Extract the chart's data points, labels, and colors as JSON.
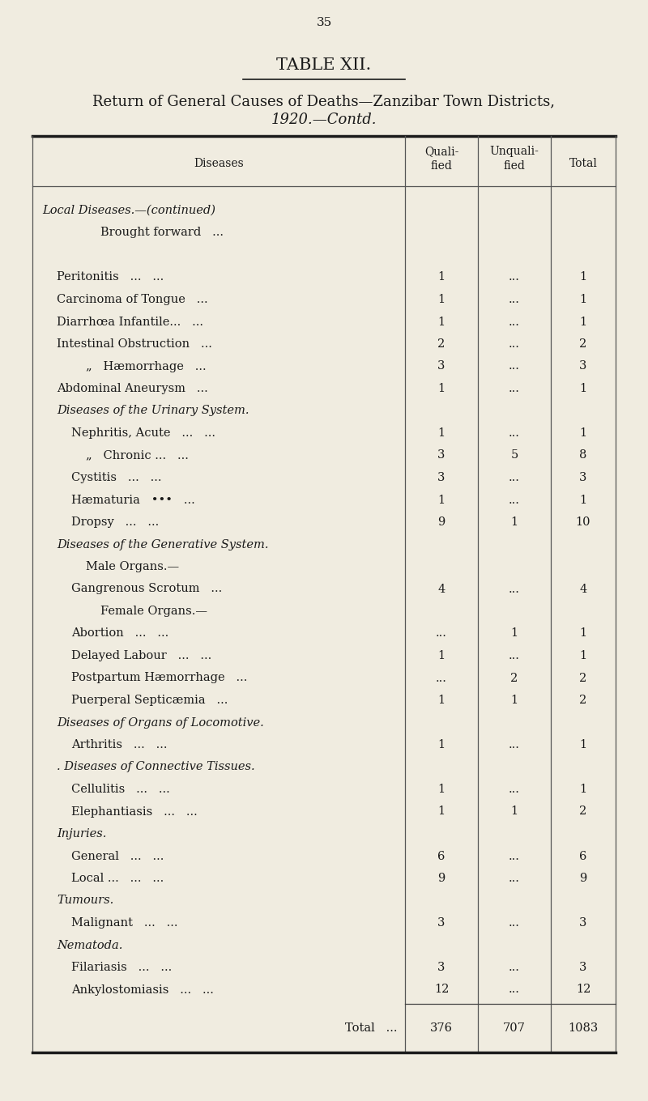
{
  "page_number": "35",
  "title": "TABLE XII.",
  "subtitle_line1": "Return of General Causes of Deaths—Zanzibar Town Districts,",
  "subtitle_line2": "1920.—Contd.",
  "bg_color": "#f0ece0",
  "text_color": "#1a1a1a",
  "rows": [
    {
      "label": "Local Diseases.—(continued)",
      "indent": 0,
      "style": "smallcaps_italic",
      "qual": "",
      "unqual": "",
      "total": ""
    },
    {
      "label": "Brought forward   ...",
      "indent": 4,
      "style": "normal",
      "qual": "",
      "unqual": "",
      "total": ""
    },
    {
      "label": "",
      "indent": 0,
      "style": "normal",
      "qual": "",
      "unqual": "",
      "total": ""
    },
    {
      "label": "Peritonitis   ...   ...",
      "indent": 1,
      "style": "normal",
      "qual": "1",
      "unqual": "...",
      "total": "1"
    },
    {
      "label": "Carcinoma of Tongue   ...",
      "indent": 1,
      "style": "normal",
      "qual": "1",
      "unqual": "...",
      "total": "1"
    },
    {
      "label": "Diarrhœa Infantile...   ...",
      "indent": 1,
      "style": "normal",
      "qual": "1",
      "unqual": "...",
      "total": "1"
    },
    {
      "label": "Intestinal Obstruction   ...",
      "indent": 1,
      "style": "normal",
      "qual": "2",
      "unqual": "...",
      "total": "2"
    },
    {
      "label": "„   Hæmorrhage   ...",
      "indent": 3,
      "style": "normal",
      "qual": "3",
      "unqual": "...",
      "total": "3"
    },
    {
      "label": "Abdominal Aneurysm   ...",
      "indent": 1,
      "style": "normal",
      "qual": "1",
      "unqual": "...",
      "total": "1"
    },
    {
      "label": "Diseases of the Urinary System.",
      "indent": 1,
      "style": "italic",
      "qual": "",
      "unqual": "",
      "total": ""
    },
    {
      "label": "Nephritis, Acute   ...   ...",
      "indent": 2,
      "style": "normal",
      "qual": "1",
      "unqual": "...",
      "total": "1"
    },
    {
      "label": "„   Chronic ...   ...",
      "indent": 3,
      "style": "normal",
      "qual": "3",
      "unqual": "5",
      "total": "8"
    },
    {
      "label": "Cystitis   ...   ...",
      "indent": 2,
      "style": "normal",
      "qual": "3",
      "unqual": "...",
      "total": "3"
    },
    {
      "label": "Hæmaturia   •••   ...",
      "indent": 2,
      "style": "normal",
      "qual": "1",
      "unqual": "...",
      "total": "1"
    },
    {
      "label": "Dropsy   ...   ...",
      "indent": 2,
      "style": "normal",
      "qual": "9",
      "unqual": "1",
      "total": "10"
    },
    {
      "label": "Diseases of the Generative System.",
      "indent": 1,
      "style": "italic",
      "qual": "",
      "unqual": "",
      "total": ""
    },
    {
      "label": "Male Organs.—",
      "indent": 3,
      "style": "normal",
      "qual": "",
      "unqual": "",
      "total": ""
    },
    {
      "label": "Gangrenous Scrotum   ...",
      "indent": 2,
      "style": "normal",
      "qual": "4",
      "unqual": "...",
      "total": "4"
    },
    {
      "label": "Female Organs.—",
      "indent": 4,
      "style": "normal",
      "qual": "",
      "unqual": "",
      "total": ""
    },
    {
      "label": "Abortion   ...   ...",
      "indent": 2,
      "style": "normal",
      "qual": "...",
      "unqual": "1",
      "total": "1"
    },
    {
      "label": "Delayed Labour   ...   ...",
      "indent": 2,
      "style": "normal",
      "qual": "1",
      "unqual": "...",
      "total": "1"
    },
    {
      "label": "Postpartum Hæmorrhage   ...",
      "indent": 2,
      "style": "normal",
      "qual": "...",
      "unqual": "2",
      "total": "2"
    },
    {
      "label": "Puerperal Septicæmia   ...",
      "indent": 2,
      "style": "normal",
      "qual": "1",
      "unqual": "1",
      "total": "2"
    },
    {
      "label": "Diseases of Organs of Locomotive.",
      "indent": 1,
      "style": "italic",
      "qual": "",
      "unqual": "",
      "total": ""
    },
    {
      "label": "Arthritis   ...   ...",
      "indent": 2,
      "style": "normal",
      "qual": "1",
      "unqual": "...",
      "total": "1"
    },
    {
      "label": "Diseases of Connective Tissues.",
      "indent": 1,
      "style": "italic",
      "qual": "",
      "unqual": "",
      "total": "",
      "prefix": ". "
    },
    {
      "label": "Cellulitis   ...   ...",
      "indent": 2,
      "style": "normal",
      "qual": "1",
      "unqual": "...",
      "total": "1"
    },
    {
      "label": "Elephantiasis   ...   ...",
      "indent": 2,
      "style": "normal",
      "qual": "1",
      "unqual": "1",
      "total": "2"
    },
    {
      "label": "Injuries.",
      "indent": 1,
      "style": "italic",
      "qual": "",
      "unqual": "",
      "total": ""
    },
    {
      "label": "General   ...   ...",
      "indent": 2,
      "style": "normal",
      "qual": "6",
      "unqual": "...",
      "total": "6"
    },
    {
      "label": "Local ...   ...   ...",
      "indent": 2,
      "style": "normal",
      "qual": "9",
      "unqual": "...",
      "total": "9"
    },
    {
      "label": "Tumours.",
      "indent": 1,
      "style": "italic",
      "qual": "",
      "unqual": "",
      "total": ""
    },
    {
      "label": "Malignant   ...   ...",
      "indent": 2,
      "style": "normal",
      "qual": "3",
      "unqual": "...",
      "total": "3"
    },
    {
      "label": "Nematoda.",
      "indent": 1,
      "style": "italic",
      "qual": "",
      "unqual": "",
      "total": ""
    },
    {
      "label": "Filariasis   ...   ...",
      "indent": 2,
      "style": "normal",
      "qual": "3",
      "unqual": "...",
      "total": "3"
    },
    {
      "label": "Ankylostomiasis   ...   ...",
      "indent": 2,
      "style": "normal",
      "qual": "12",
      "unqual": "...",
      "total": "12"
    }
  ],
  "total_label": "Total   ...",
  "total_qual": "376",
  "total_unqual": "707",
  "total_total": "1083"
}
